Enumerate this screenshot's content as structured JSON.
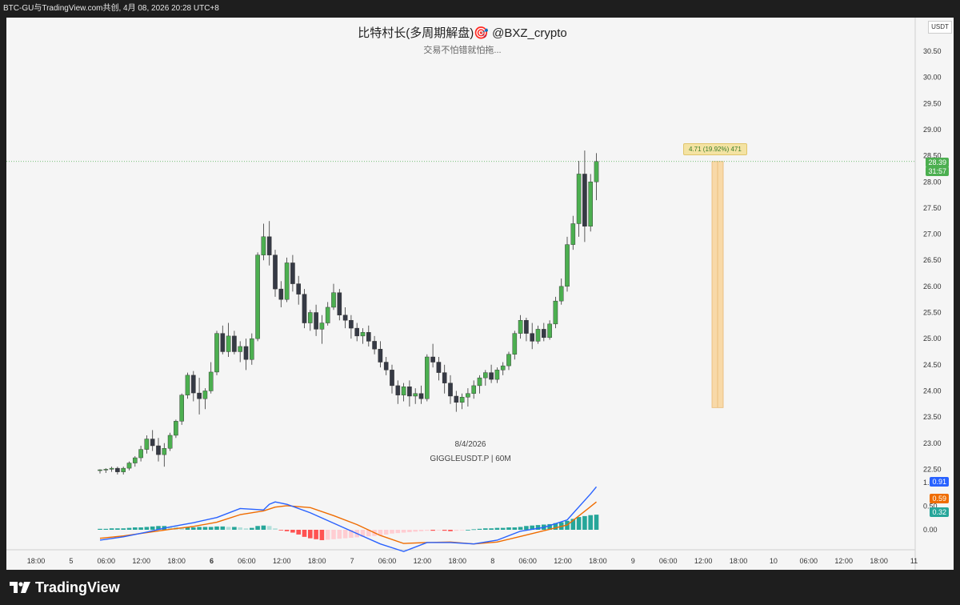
{
  "top_bar": {
    "text": "BTC-GU与TradingView.com共创, 4月 08, 2026 20:28 UTC+8"
  },
  "watermark": {
    "title": "比特村长(多周期解盘)🎯  @BXZ_crypto",
    "subtitle": "交易不怕错就怕拖...",
    "date": "8/4/2026",
    "symbol": "GIGGLEUSDT.P | 60M"
  },
  "currency_label": "USDT",
  "measure": {
    "label": "4.71 (19.92%) 471",
    "from": 23.68,
    "to": 28.39
  },
  "last_price": {
    "price": "28.39",
    "countdown": "31:57"
  },
  "macd_labels": {
    "macd": "0.91",
    "signal": "0.59",
    "histogram": "0.32"
  },
  "brand": {
    "name": "TradingView"
  },
  "colors": {
    "up": "#4caf50",
    "down": "#363a45",
    "macd_line": "#2962ff",
    "signal_line": "#ef6c00",
    "hist_pos": "#26a69a",
    "hist_pos_light": "#b2dfdb",
    "hist_neg": "#ff5252",
    "hist_neg_light": "#ffcdd2",
    "measure_fill": "#f8d9a8"
  },
  "chart_data": {
    "type": "candlestick",
    "title": "",
    "xlabel": "",
    "ylabel": "",
    "ylim": [
      22.5,
      30.5
    ],
    "y_ticks": [
      "30.50",
      "30.00",
      "29.50",
      "29.00",
      "28.50",
      "28.00",
      "27.50",
      "27.00",
      "26.50",
      "26.00",
      "25.50",
      "25.00",
      "24.50",
      "24.00",
      "23.50",
      "23.00",
      "22.50"
    ],
    "x_ticks": [
      {
        "label": "18:00",
        "bold": false
      },
      {
        "label": "5",
        "bold": false
      },
      {
        "label": "06:00",
        "bold": false
      },
      {
        "label": "12:00",
        "bold": false
      },
      {
        "label": "18:00",
        "bold": false
      },
      {
        "label": "6",
        "bold": true
      },
      {
        "label": "06:00",
        "bold": false
      },
      {
        "label": "12:00",
        "bold": false
      },
      {
        "label": "18:00",
        "bold": false
      },
      {
        "label": "7",
        "bold": false
      },
      {
        "label": "06:00",
        "bold": false
      },
      {
        "label": "12:00",
        "bold": false
      },
      {
        "label": "18:00",
        "bold": false
      },
      {
        "label": "8",
        "bold": false
      },
      {
        "label": "06:00",
        "bold": false
      },
      {
        "label": "12:00",
        "bold": false
      },
      {
        "label": "18:00",
        "bold": false
      },
      {
        "label": "9",
        "bold": false
      },
      {
        "label": "06:00",
        "bold": false
      },
      {
        "label": "12:00",
        "bold": false
      },
      {
        "label": "18:00",
        "bold": false
      },
      {
        "label": "10",
        "bold": false
      },
      {
        "label": "06:00",
        "bold": false
      },
      {
        "label": "12:00",
        "bold": false
      },
      {
        "label": "18:00",
        "bold": false
      },
      {
        "label": "11",
        "bold": false
      }
    ],
    "candles": [
      [
        22.49,
        22.5,
        22.42,
        22.49
      ],
      [
        22.49,
        22.52,
        22.43,
        22.5
      ],
      [
        22.5,
        22.55,
        22.45,
        22.52
      ],
      [
        22.52,
        22.55,
        22.4,
        22.45
      ],
      [
        22.45,
        22.55,
        22.4,
        22.52
      ],
      [
        22.52,
        22.65,
        22.48,
        22.62
      ],
      [
        22.62,
        22.75,
        22.55,
        22.72
      ],
      [
        22.72,
        22.95,
        22.65,
        22.88
      ],
      [
        22.88,
        23.15,
        22.8,
        23.08
      ],
      [
        23.08,
        23.25,
        22.85,
        22.95
      ],
      [
        22.95,
        23.1,
        22.65,
        22.78
      ],
      [
        22.78,
        23.0,
        22.55,
        22.9
      ],
      [
        22.9,
        23.2,
        22.85,
        23.15
      ],
      [
        23.15,
        23.45,
        23.1,
        23.42
      ],
      [
        23.42,
        23.95,
        23.35,
        23.92
      ],
      [
        23.92,
        24.35,
        23.85,
        24.3
      ],
      [
        24.3,
        24.38,
        23.8,
        23.96
      ],
      [
        23.96,
        24.25,
        23.55,
        23.85
      ],
      [
        23.85,
        24.05,
        23.65,
        24.0
      ],
      [
        24.0,
        24.55,
        23.95,
        24.36
      ],
      [
        24.36,
        25.15,
        24.3,
        25.1
      ],
      [
        25.1,
        25.25,
        24.7,
        24.75
      ],
      [
        24.75,
        25.3,
        24.65,
        25.05
      ],
      [
        25.05,
        25.15,
        24.7,
        24.75
      ],
      [
        24.75,
        24.95,
        24.55,
        24.85
      ],
      [
        24.85,
        25.0,
        24.4,
        24.6
      ],
      [
        24.6,
        25.1,
        24.5,
        25.0
      ],
      [
        25.0,
        26.65,
        24.95,
        26.6
      ],
      [
        26.6,
        27.2,
        26.5,
        26.95
      ],
      [
        26.95,
        27.25,
        26.4,
        26.6
      ],
      [
        26.6,
        26.7,
        25.8,
        25.95
      ],
      [
        25.95,
        26.1,
        25.6,
        25.75
      ],
      [
        25.75,
        26.55,
        25.7,
        26.45
      ],
      [
        26.45,
        26.6,
        25.9,
        26.05
      ],
      [
        26.05,
        26.2,
        25.65,
        25.85
      ],
      [
        25.85,
        25.95,
        25.2,
        25.3
      ],
      [
        25.3,
        25.55,
        25.15,
        25.5
      ],
      [
        25.5,
        25.65,
        25.05,
        25.18
      ],
      [
        25.18,
        25.45,
        24.9,
        25.3
      ],
      [
        25.3,
        25.7,
        25.25,
        25.6
      ],
      [
        25.6,
        26.05,
        25.55,
        25.88
      ],
      [
        25.88,
        25.95,
        25.35,
        25.45
      ],
      [
        25.45,
        25.6,
        25.2,
        25.35
      ],
      [
        25.35,
        25.45,
        25.0,
        25.2
      ],
      [
        25.2,
        25.3,
        24.95,
        25.05
      ],
      [
        25.05,
        25.2,
        24.9,
        25.12
      ],
      [
        25.12,
        25.25,
        24.85,
        24.95
      ],
      [
        24.95,
        25.05,
        24.7,
        24.8
      ],
      [
        24.8,
        24.95,
        24.45,
        24.55
      ],
      [
        24.55,
        24.65,
        24.3,
        24.4
      ],
      [
        24.4,
        24.5,
        23.95,
        24.1
      ],
      [
        24.1,
        24.2,
        23.75,
        23.92
      ],
      [
        23.92,
        24.15,
        23.8,
        24.08
      ],
      [
        24.08,
        24.2,
        23.7,
        23.9
      ],
      [
        23.9,
        24.05,
        23.75,
        23.95
      ],
      [
        23.95,
        24.1,
        23.75,
        23.85
      ],
      [
        23.85,
        24.7,
        23.8,
        24.65
      ],
      [
        24.65,
        24.9,
        24.45,
        24.55
      ],
      [
        24.55,
        24.65,
        24.2,
        24.35
      ],
      [
        24.35,
        24.5,
        23.95,
        24.15
      ],
      [
        24.15,
        24.3,
        23.75,
        23.9
      ],
      [
        23.9,
        24.0,
        23.6,
        23.78
      ],
      [
        23.78,
        23.95,
        23.65,
        23.88
      ],
      [
        23.88,
        24.05,
        23.7,
        23.95
      ],
      [
        23.95,
        24.2,
        23.85,
        24.1
      ],
      [
        24.1,
        24.3,
        23.95,
        24.25
      ],
      [
        24.25,
        24.4,
        24.1,
        24.35
      ],
      [
        24.35,
        24.5,
        24.15,
        24.22
      ],
      [
        24.22,
        24.45,
        24.15,
        24.4
      ],
      [
        24.4,
        24.55,
        24.3,
        24.48
      ],
      [
        24.48,
        24.75,
        24.4,
        24.7
      ],
      [
        24.7,
        25.15,
        24.6,
        25.1
      ],
      [
        25.1,
        25.45,
        25.0,
        25.35
      ],
      [
        25.35,
        25.4,
        24.95,
        25.1
      ],
      [
        25.1,
        25.3,
        24.8,
        24.95
      ],
      [
        24.95,
        25.25,
        24.9,
        25.18
      ],
      [
        25.18,
        25.3,
        24.95,
        25.02
      ],
      [
        25.02,
        25.35,
        24.98,
        25.28
      ],
      [
        25.28,
        25.8,
        25.2,
        25.72
      ],
      [
        25.72,
        26.15,
        25.65,
        26.0
      ],
      [
        26.0,
        26.95,
        25.9,
        26.8
      ],
      [
        26.8,
        27.35,
        26.7,
        27.2
      ],
      [
        27.2,
        28.4,
        26.95,
        28.15
      ],
      [
        28.15,
        28.6,
        26.85,
        27.15
      ],
      [
        27.15,
        28.15,
        27.05,
        28.0
      ],
      [
        28.0,
        28.55,
        27.65,
        28.39
      ]
    ],
    "macd": {
      "x": [
        0,
        4,
        8,
        12,
        16,
        20,
        24,
        28,
        29,
        30,
        32,
        36,
        40,
        44,
        48,
        52,
        56,
        60,
        64,
        68,
        72,
        76,
        80,
        84,
        85
      ],
      "macd": [
        -0.22,
        -0.15,
        -0.05,
        0.06,
        0.15,
        0.26,
        0.45,
        0.42,
        0.54,
        0.59,
        0.54,
        0.36,
        0.14,
        -0.08,
        -0.3,
        -0.46,
        -0.27,
        -0.27,
        -0.3,
        -0.22,
        -0.03,
        0.05,
        0.21,
        0.76,
        0.91
      ],
      "signal": [
        -0.18,
        -0.13,
        -0.06,
        0.01,
        0.07,
        0.16,
        0.32,
        0.4,
        0.44,
        0.48,
        0.51,
        0.47,
        0.3,
        0.11,
        -0.12,
        -0.29,
        -0.27,
        -0.26,
        -0.3,
        -0.26,
        -0.14,
        -0.02,
        0.1,
        0.49,
        0.59
      ],
      "histogram": [
        0.02,
        0.02,
        0.03,
        0.03,
        0.03,
        0.04,
        0.05,
        0.05,
        0.06,
        0.07,
        0.08,
        0.08,
        0.07,
        0.06,
        0.05,
        0.05,
        0.05,
        0.06,
        0.06,
        0.06,
        0.07,
        0.07,
        0.06,
        0.06,
        0.05,
        0.03,
        0.04,
        0.08,
        0.09,
        0.08,
        0.03,
        -0.01,
        -0.03,
        -0.06,
        -0.1,
        -0.15,
        -0.18,
        -0.2,
        -0.22,
        -0.21,
        -0.2,
        -0.19,
        -0.18,
        -0.17,
        -0.16,
        -0.15,
        -0.14,
        -0.13,
        -0.12,
        -0.1,
        -0.08,
        -0.07,
        -0.06,
        -0.05,
        -0.04,
        -0.03,
        -0.02,
        -0.02,
        -0.01,
        -0.02,
        -0.03,
        -0.02,
        -0.01,
        0.0,
        0.01,
        0.02,
        0.03,
        0.03,
        0.04,
        0.04,
        0.05,
        0.05,
        0.06,
        0.08,
        0.09,
        0.1,
        0.11,
        0.12,
        0.14,
        0.16,
        0.19,
        0.23,
        0.27,
        0.29,
        0.31,
        0.32
      ],
      "ylim": [
        -0.3,
        1.0
      ],
      "y_ticks": [
        "1.00",
        "0.50",
        "0.00"
      ]
    }
  }
}
